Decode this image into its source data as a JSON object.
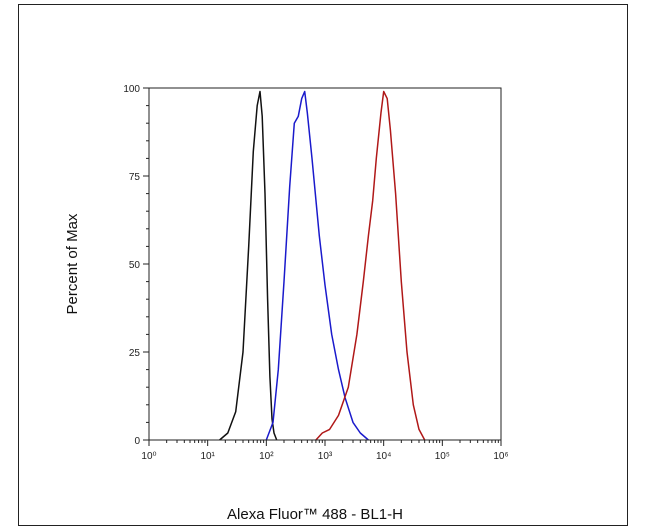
{
  "chart_data": {
    "type": "line",
    "title": "",
    "xlabel": "Alexa Fluor™ 488 - BL1-H",
    "ylabel": "Percent of Max",
    "x_scale": "log",
    "xlim": [
      1,
      1000000
    ],
    "ylim": [
      0,
      100
    ],
    "x_tick_labels": [
      "10⁰",
      "10¹",
      "10²",
      "10³",
      "10⁴",
      "10⁵",
      "10⁶"
    ],
    "x_tick_values": [
      1,
      10,
      100,
      1000,
      10000,
      100000,
      1000000
    ],
    "y_ticks": [
      0,
      25,
      50,
      75,
      100
    ],
    "grid": false,
    "series": [
      {
        "color": "#111111",
        "x": [
          16,
          22,
          30,
          40,
          50,
          60,
          70,
          78,
          85,
          95,
          105,
          115,
          125,
          135,
          150
        ],
        "y": [
          0,
          2,
          8,
          25,
          55,
          82,
          95,
          99,
          92,
          70,
          40,
          18,
          6,
          2,
          0
        ]
      },
      {
        "color": "#1a1acc",
        "x": [
          100,
          130,
          160,
          200,
          250,
          300,
          350,
          400,
          450,
          500,
          600,
          800,
          1000,
          1300,
          1700,
          2200,
          3000,
          4000,
          5500
        ],
        "y": [
          0,
          5,
          20,
          45,
          72,
          90,
          92,
          97,
          99,
          93,
          80,
          58,
          44,
          30,
          20,
          12,
          5,
          2,
          0
        ]
      },
      {
        "color": "#b01818",
        "x": [
          700,
          900,
          1200,
          1700,
          2500,
          3500,
          4500,
          5500,
          6500,
          7500,
          9000,
          10000,
          11500,
          13000,
          16000,
          20000,
          25000,
          32000,
          40000,
          50000
        ],
        "y": [
          0,
          2,
          3,
          7,
          15,
          30,
          45,
          58,
          68,
          80,
          93,
          99,
          97,
          88,
          70,
          45,
          25,
          10,
          3,
          0
        ]
      }
    ]
  }
}
